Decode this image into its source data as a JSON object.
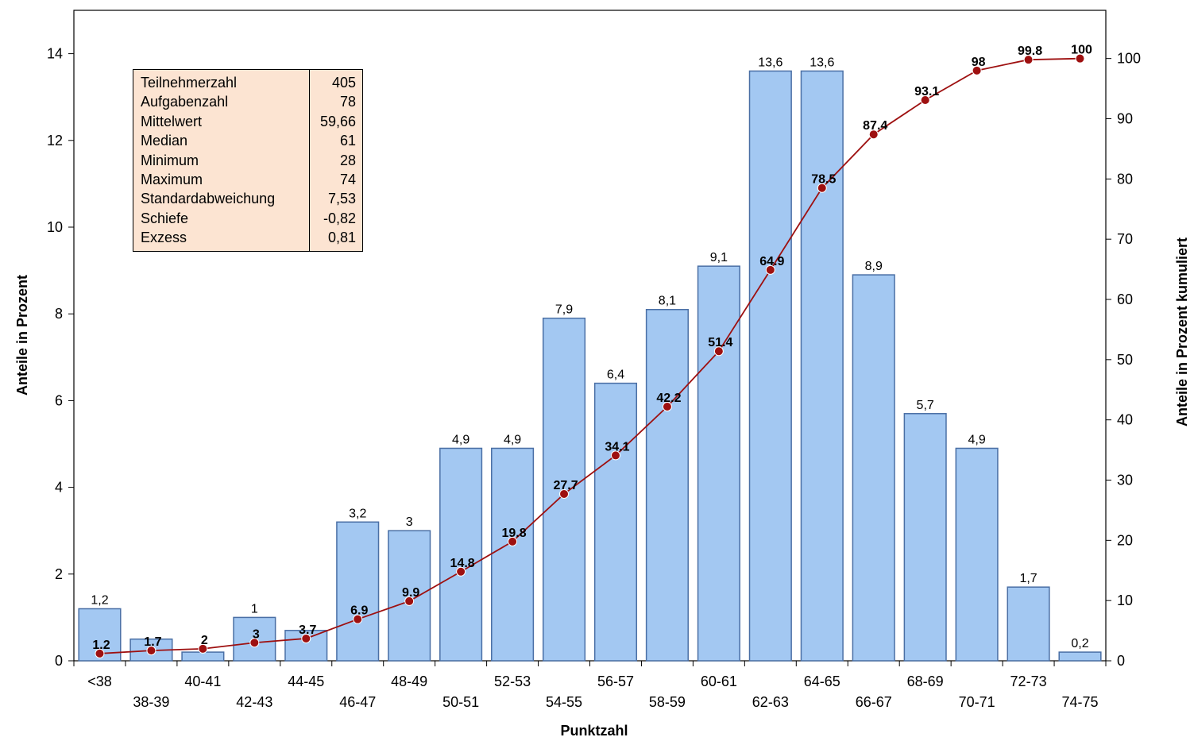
{
  "chart_data": {
    "type": "bar",
    "xlabel": "Punktzahl",
    "ylabel": "Anteile in Prozent",
    "y2label": "Anteile in Prozent kumuliert",
    "categories": [
      "<38",
      "38-39",
      "40-41",
      "42-43",
      "44-45",
      "46-47",
      "48-49",
      "50-51",
      "52-53",
      "54-55",
      "56-57",
      "58-59",
      "60-61",
      "62-63",
      "64-65",
      "66-67",
      "68-69",
      "70-71",
      "72-73",
      "74-75"
    ],
    "bar_labels": [
      "1,2",
      "",
      "",
      "1",
      "",
      "3,2",
      "3",
      "4,9",
      "4,9",
      "7,9",
      "6,4",
      "8,1",
      "9,1",
      "13,6",
      "13,6",
      "8,9",
      "5,7",
      "4,9",
      "1,7",
      "0,2"
    ],
    "series": [
      {
        "type": "bar",
        "axis": "left",
        "color": "#a3c8f2",
        "edge": "#4a6fa5",
        "values": [
          1.2,
          0.5,
          0.2,
          1,
          0.7,
          3.2,
          3,
          4.9,
          4.9,
          7.9,
          6.4,
          8.1,
          9.1,
          13.6,
          13.6,
          8.9,
          5.7,
          4.9,
          1.7,
          0.2
        ]
      },
      {
        "type": "line",
        "axis": "right",
        "color": "#9e1010",
        "values": [
          1.2,
          1.7,
          2,
          3,
          3.7,
          6.9,
          9.9,
          14.8,
          19.8,
          27.7,
          34.1,
          42.2,
          51.4,
          64.9,
          78.5,
          87.4,
          93.1,
          98,
          99.8,
          100
        ],
        "labels": [
          "1.2",
          "1.7",
          "2",
          "3",
          "3.7",
          "6.9",
          "9.9",
          "14.8",
          "19.8",
          "27.7",
          "34.1",
          "42.2",
          "51.4",
          "64.9",
          "78.5",
          "87.4",
          "93.1",
          "98",
          "99.8",
          "100"
        ]
      }
    ],
    "ylim": [
      0,
      15
    ],
    "yticks": [
      "0",
      "2",
      "4",
      "6",
      "8",
      "10",
      "12",
      "14"
    ],
    "y2lim": [
      0,
      108
    ],
    "y2ticks": [
      "0",
      "10",
      "20",
      "30",
      "40",
      "50",
      "60",
      "70",
      "80",
      "90",
      "100"
    ],
    "grid": false,
    "legend": "none"
  },
  "stats_box": {
    "rows": [
      {
        "label": "Teilnehmerzahl",
        "value": "405"
      },
      {
        "label": "Aufgabenzahl",
        "value": "78"
      },
      {
        "label": "Mittelwert",
        "value": "59,66"
      },
      {
        "label": "Median",
        "value": "61"
      },
      {
        "label": "Minimum",
        "value": "28"
      },
      {
        "label": "Maximum",
        "value": "74"
      },
      {
        "label": "Standardabweichung",
        "value": "7,53"
      },
      {
        "label": "Schiefe",
        "value": "-0,82"
      },
      {
        "label": "Exzess",
        "value": "0,81"
      }
    ]
  }
}
